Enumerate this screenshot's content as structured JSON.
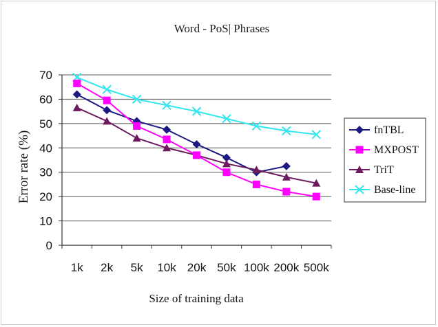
{
  "chart_data": {
    "type": "line",
    "title": "Word - PoS| Phrases",
    "xlabel": "Size of training data",
    "ylabel": "Error rate (%)",
    "ylim": [
      0,
      70
    ],
    "yticks": [
      0,
      10,
      20,
      30,
      40,
      50,
      60,
      70
    ],
    "categories": [
      "1k",
      "2k",
      "5k",
      "10k",
      "20k",
      "50k",
      "100k",
      "200k",
      "500k"
    ],
    "grid": true,
    "legend_position": "right",
    "series": [
      {
        "name": "fnTBL",
        "color": "#1a1a80",
        "marker": "diamond",
        "values": [
          62,
          55.5,
          51,
          47.5,
          41.5,
          36,
          30,
          32.5,
          null
        ]
      },
      {
        "name": "MXPOST",
        "color": "#ff00ff",
        "marker": "square",
        "values": [
          66.5,
          59.5,
          49,
          43.5,
          37,
          30,
          25,
          22,
          20
        ]
      },
      {
        "name": "TriT",
        "color": "#6b1a5e",
        "marker": "triangle",
        "values": [
          56.5,
          51,
          44,
          40,
          37,
          33.5,
          31,
          28,
          25.5
        ]
      },
      {
        "name": "Base-line",
        "color": "#33e6ee",
        "marker": "x",
        "values": [
          69,
          64,
          60,
          57.5,
          55,
          52,
          49,
          47,
          45.5
        ]
      }
    ]
  }
}
